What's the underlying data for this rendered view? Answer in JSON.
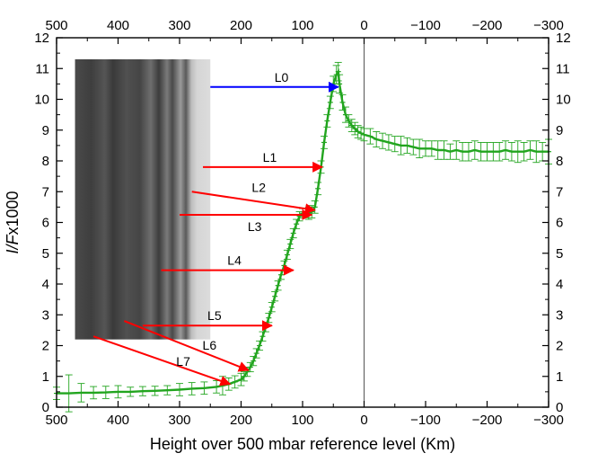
{
  "chart_data": {
    "type": "scatter",
    "title": "",
    "xlabel": "Height over 500 mbar reference level (Km)",
    "ylabel": {
      "italic": "I/F",
      "rest": "x1000"
    },
    "xlim": [
      500,
      -300
    ],
    "ylim": [
      0,
      12
    ],
    "x_ticks": [
      500,
      400,
      300,
      200,
      100,
      0,
      -100,
      -200,
      -300
    ],
    "x_tick_labels": [
      "500",
      "400",
      "300",
      "200",
      "100",
      "0",
      "−100",
      "−200",
      "−300"
    ],
    "y_ticks": [
      0,
      1,
      2,
      3,
      4,
      5,
      6,
      7,
      8,
      9,
      10,
      11,
      12
    ],
    "y_tick_labels": [
      "0",
      "1",
      "2",
      "3",
      "4",
      "5",
      "6",
      "7",
      "8",
      "9",
      "10",
      "11",
      "12"
    ],
    "grid": false,
    "reference_line_x": 0,
    "series": [
      {
        "color": "#22a51f",
        "marker": "plus-with-errorbars",
        "x": [
          500,
          480,
          460,
          440,
          420,
          400,
          380,
          360,
          340,
          320,
          300,
          280,
          260,
          240,
          230,
          220,
          210,
          200,
          195,
          190,
          185,
          180,
          175,
          170,
          165,
          160,
          155,
          150,
          145,
          140,
          135,
          130,
          125,
          120,
          115,
          110,
          105,
          100,
          95,
          90,
          85,
          80,
          75,
          70,
          65,
          60,
          55,
          50,
          45,
          42,
          40,
          35,
          30,
          25,
          20,
          15,
          10,
          5,
          0,
          -10,
          -20,
          -30,
          -40,
          -50,
          -60,
          -70,
          -80,
          -90,
          -100,
          -110,
          -120,
          -130,
          -140,
          -150,
          -160,
          -170,
          -180,
          -190,
          -200,
          -210,
          -220,
          -230,
          -240,
          -250,
          -260,
          -270,
          -280,
          -290,
          -300
        ],
        "y": [
          0.45,
          0.45,
          0.47,
          0.47,
          0.48,
          0.5,
          0.5,
          0.52,
          0.53,
          0.55,
          0.57,
          0.6,
          0.62,
          0.66,
          0.7,
          0.75,
          0.82,
          0.9,
          1.0,
          1.15,
          1.3,
          1.5,
          1.75,
          2.0,
          2.3,
          2.6,
          2.9,
          3.25,
          3.6,
          3.95,
          4.3,
          4.6,
          4.95,
          5.3,
          5.65,
          5.95,
          6.2,
          6.3,
          6.3,
          6.3,
          6.35,
          6.5,
          7.1,
          7.8,
          8.6,
          9.3,
          9.9,
          10.5,
          10.8,
          10.9,
          10.5,
          9.9,
          9.5,
          9.3,
          9.15,
          9.05,
          8.95,
          8.9,
          8.85,
          8.8,
          8.7,
          8.65,
          8.6,
          8.55,
          8.5,
          8.5,
          8.45,
          8.4,
          8.4,
          8.4,
          8.35,
          8.35,
          8.3,
          8.35,
          8.3,
          8.3,
          8.35,
          8.3,
          8.3,
          8.3,
          8.3,
          8.35,
          8.3,
          8.3,
          8.3,
          8.35,
          8.3,
          8.3,
          8.3
        ],
        "err": [
          0.2,
          0.6,
          0.3,
          0.2,
          0.2,
          0.2,
          0.15,
          0.15,
          0.15,
          0.15,
          0.2,
          0.2,
          0.2,
          0.2,
          0.3,
          0.2,
          0.2,
          0.2,
          0.15,
          0.15,
          0.15,
          0.15,
          0.15,
          0.15,
          0.15,
          0.15,
          0.15,
          0.15,
          0.15,
          0.15,
          0.15,
          0.15,
          0.15,
          0.15,
          0.15,
          0.15,
          0.15,
          0.15,
          0.15,
          0.2,
          0.2,
          0.2,
          0.2,
          0.2,
          0.2,
          0.2,
          0.2,
          0.25,
          0.3,
          0.3,
          0.3,
          0.25,
          0.25,
          0.2,
          0.2,
          0.2,
          0.2,
          0.2,
          0.2,
          0.25,
          0.25,
          0.25,
          0.25,
          0.25,
          0.3,
          0.25,
          0.25,
          0.3,
          0.25,
          0.25,
          0.3,
          0.3,
          0.25,
          0.3,
          0.3,
          0.3,
          0.3,
          0.3,
          0.3,
          0.3,
          0.3,
          0.3,
          0.3,
          0.35,
          0.3,
          0.3,
          0.35,
          0.3,
          0.4
        ]
      }
    ],
    "annotations": [
      {
        "label": "L0",
        "color": "#0000ff",
        "from": [
          250,
          10.4
        ],
        "to": [
          42,
          10.4
        ]
      },
      {
        "label": "L1",
        "color": "#ff0000",
        "from": [
          262,
          7.8
        ],
        "to": [
          68,
          7.8
        ]
      },
      {
        "label": "L2",
        "color": "#ff0000",
        "from": [
          280,
          7.0
        ],
        "to": [
          80,
          6.4
        ]
      },
      {
        "label": "L3",
        "color": "#ff0000",
        "from": [
          300,
          6.25
        ],
        "to": [
          85,
          6.25
        ]
      },
      {
        "label": "L4",
        "color": "#ff0000",
        "from": [
          330,
          4.45
        ],
        "to": [
          115,
          4.45
        ]
      },
      {
        "label": "L5",
        "color": "#ff0000",
        "from": [
          360,
          2.65
        ],
        "to": [
          150,
          2.65
        ]
      },
      {
        "label": "L6",
        "color": "#ff0000",
        "from": [
          390,
          2.8
        ],
        "to": [
          188,
          1.2
        ]
      },
      {
        "label": "L7",
        "color": "#ff0000",
        "from": [
          440,
          2.3
        ],
        "to": [
          218,
          0.75
        ]
      }
    ],
    "inset_image": {
      "kind": "grayscale-strip-image",
      "x_range": [
        470,
        250
      ],
      "y_range": [
        2.2,
        11.3
      ]
    }
  }
}
